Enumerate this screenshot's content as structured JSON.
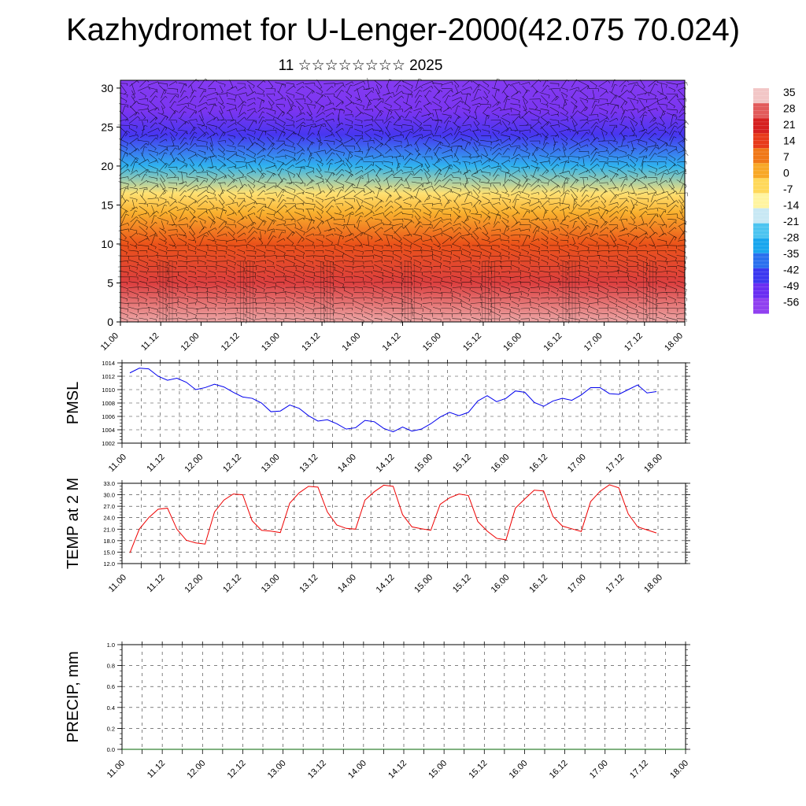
{
  "title": "Kazhydromet for U-Lenger-2000(42.075 70.024)",
  "subtitle": "11 ☆☆☆☆☆☆☆☆ 2025",
  "chart_data": [
    {
      "type": "heatmap",
      "ylim": [
        0,
        31
      ],
      "yticks": [
        "0",
        "5",
        "10",
        "15",
        "20",
        "25",
        "30"
      ],
      "xticks": [
        "11.00",
        "11.12",
        "12.00",
        "12.12",
        "13.00",
        "13.12",
        "14.00",
        "14.12",
        "15.00",
        "15.12",
        "16.00",
        "16.12",
        "17.00",
        "17.12",
        "18.00"
      ],
      "colorbar": {
        "labels": [
          "35",
          "28",
          "21",
          "14",
          "7",
          "0",
          "-7",
          "-14",
          "-21",
          "-28",
          "-35",
          "-42",
          "-49",
          "-56"
        ],
        "colors": [
          "#f2c6c6",
          "#e25b5b",
          "#d62020",
          "#e83a1a",
          "#f07818",
          "#f8a826",
          "#ffd85a",
          "#fff4a0",
          "#c8e8f4",
          "#4cc4f0",
          "#1aa6ee",
          "#2a70ee",
          "#3c38f0",
          "#6a2ef2",
          "#9040f0"
        ]
      },
      "layers": [
        {
          "level": 0,
          "value": 33
        },
        {
          "level": 5,
          "value": 25
        },
        {
          "level": 10,
          "value": 12
        },
        {
          "level": 14,
          "value": 0
        },
        {
          "level": 16.5,
          "value": -8
        },
        {
          "level": 20,
          "value": -30
        },
        {
          "level": 24,
          "value": -48
        },
        {
          "level": 27,
          "value": -56
        },
        {
          "level": 31,
          "value": -58
        }
      ]
    },
    {
      "type": "line",
      "ylabel": "PMSL",
      "ylim": [
        1002,
        1014
      ],
      "yticks": [
        "1002",
        "1004",
        "1006",
        "1008",
        "1010",
        "1012",
        "1014"
      ],
      "xticks": [
        "11.00",
        "11.12",
        "12.00",
        "12.12",
        "13.00",
        "13.12",
        "14.00",
        "14.12",
        "15.00",
        "15.12",
        "16.00",
        "16.12",
        "17.00",
        "17.12",
        "18.00"
      ],
      "color": "#0000ee",
      "series": [
        {
          "values": [
            1012.5,
            1013.2,
            1013.1,
            1012.0,
            1011.4,
            1011.7,
            1011.1,
            1010.0,
            1010.3,
            1010.8,
            1010.4,
            1009.6,
            1008.9,
            1008.7,
            1008.0,
            1006.7,
            1006.8,
            1007.7,
            1007.2,
            1006.1,
            1005.3,
            1005.5,
            1004.9,
            1004.1,
            1004.3,
            1005.4,
            1005.2,
            1004.2,
            1003.7,
            1004.4,
            1003.8,
            1004.1,
            1004.9,
            1005.9,
            1006.6,
            1006.1,
            1006.6,
            1008.3,
            1009.1,
            1008.2,
            1008.7,
            1009.8,
            1009.6,
            1008.1,
            1007.5,
            1008.3,
            1008.7,
            1008.4,
            1009.2,
            1010.3,
            1010.3,
            1009.4,
            1009.3,
            1010.0,
            1010.7,
            1009.5,
            1009.7
          ]
        }
      ]
    },
    {
      "type": "line",
      "ylabel": "TEMP at 2 M",
      "ylim": [
        12,
        33
      ],
      "yticks": [
        "12.0",
        "15.0",
        "18.0",
        "21.0",
        "24.0",
        "27.0",
        "30.0",
        "33.0"
      ],
      "xticks": [
        "11.00",
        "11.12",
        "12.00",
        "12.12",
        "13.00",
        "13.12",
        "14.00",
        "14.12",
        "15.00",
        "15.12",
        "16.00",
        "16.12",
        "17.00",
        "17.12",
        "18.00"
      ],
      "color": "#ee0000",
      "series": [
        {
          "values": [
            14.8,
            21.0,
            24.0,
            26.2,
            26.5,
            21.0,
            18.1,
            17.4,
            17.1,
            25.5,
            28.6,
            30.2,
            30.0,
            23.2,
            20.7,
            20.5,
            20.1,
            27.8,
            30.5,
            32.2,
            32.0,
            25.5,
            22.1,
            21.2,
            21.0,
            28.6,
            30.8,
            32.5,
            32.2,
            24.8,
            21.6,
            21.1,
            20.7,
            27.5,
            29.2,
            30.2,
            29.8,
            23.0,
            20.5,
            18.6,
            18.2,
            26.5,
            28.9,
            31.2,
            31.0,
            24.3,
            21.8,
            21.1,
            20.4,
            28.2,
            30.9,
            32.6,
            31.8,
            25.0,
            21.6,
            20.8,
            20.0
          ]
        }
      ]
    },
    {
      "type": "line",
      "ylabel": "PRECIP, mm",
      "ylim": [
        0,
        1
      ],
      "yticks": [
        "0.0",
        "0.2",
        "0.4",
        "0.6",
        "0.8",
        "1.0"
      ],
      "xticks": [
        "11.00",
        "11.12",
        "12.00",
        "12.12",
        "13.00",
        "13.12",
        "14.00",
        "14.12",
        "15.00",
        "15.12",
        "16.00",
        "16.12",
        "17.00",
        "17.12",
        "18.00"
      ],
      "color": "#006400",
      "series": [
        {
          "values": [
            0,
            0,
            0,
            0,
            0,
            0,
            0,
            0,
            0,
            0,
            0,
            0,
            0,
            0,
            0,
            0,
            0,
            0,
            0,
            0,
            0,
            0,
            0,
            0,
            0,
            0,
            0,
            0,
            0,
            0,
            0,
            0,
            0,
            0,
            0,
            0,
            0,
            0,
            0,
            0,
            0,
            0,
            0,
            0,
            0,
            0,
            0,
            0,
            0,
            0,
            0,
            0,
            0,
            0,
            0,
            0,
            0
          ]
        }
      ]
    }
  ]
}
